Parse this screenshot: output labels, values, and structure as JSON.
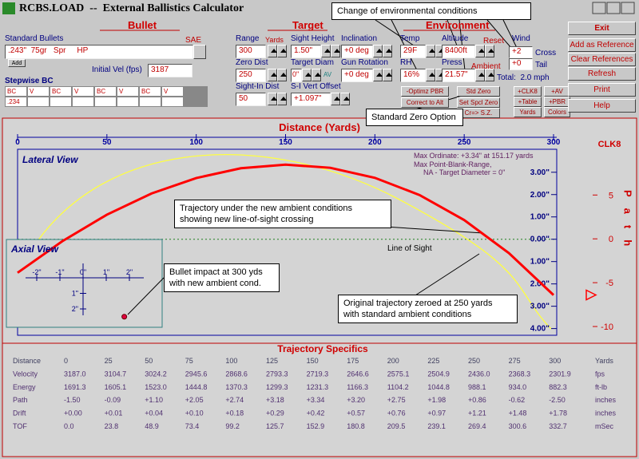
{
  "title_bar": {
    "title": "RCBS.LOAD  --  External Ballistics Calculator"
  },
  "bullet": {
    "heading": "Bullet",
    "standard_bullets_label": "Standard Bullets",
    "sae": "SAE",
    "bullet_value": ".243\"  75gr   Spr     HP",
    "add": "Add",
    "initial_vel_label": "Initial Vel (fps)",
    "initial_vel": "3187",
    "stepwise_bc_label": "Stepwise BC",
    "bc_headers": [
      "BC",
      "V",
      "BC",
      "V",
      "BC",
      "V",
      "BC",
      "V"
    ],
    "bc_first": ".234"
  },
  "target": {
    "heading": "Target",
    "range_label": "Range",
    "range_unit": "Yards",
    "range": "300",
    "sight_height_label": "Sight Height",
    "sight_height": "1.50\"",
    "inclination_label": "Inclination",
    "inclination": "+0 deg",
    "zero_dist_label": "Zero Dist",
    "zero_dist": "250",
    "target_diam_label": "Target Diam",
    "target_diam": "0\"",
    "av": "AV",
    "gun_rotation_label": "Gun Rotation",
    "gun_rotation": "+0 deg",
    "sight_in_label": "Sight-In Dist",
    "sight_in": "50",
    "svo_label": "S-I Vert Offset",
    "svo": "+1.097\""
  },
  "environment": {
    "heading": "Environment",
    "temp_label": "Temp",
    "temp": "29F",
    "altitude_label": "Altitude",
    "altitude": "8400ft",
    "reset": "Reset",
    "wind_label": "Wind",
    "rh_label": "RH",
    "rh": "16%",
    "press_label": "Press",
    "press": "21.57\"",
    "ambient": "Ambient",
    "cross_value": "+2",
    "cross": "Cross",
    "tail_value": "+0",
    "tail": "Tail",
    "total": "Total:  2.0 mph"
  },
  "buttons": [
    "-Optimz PBR",
    "Correct to Alt",
    "Std Zero",
    "Set Spcl Zero",
    "Cr=> S.Z.",
    "+CLK8",
    "+AV",
    "+Table",
    "+PBR",
    "Yards",
    "Colors"
  ],
  "side_buttons": [
    "Exit",
    "Add as Reference",
    "Clear References",
    "Refresh",
    "Print",
    "Help"
  ],
  "callouts": {
    "environment": [
      "Change of environmental conditions"
    ],
    "std_zero": [
      "Standard Zero Option"
    ],
    "new_trajectory": [
      "Trajectory under the new ambient conditions",
      "showing new line-of-sight crossing"
    ],
    "impact": [
      "Bullet impact at 300 yds",
      "with new ambient cond."
    ],
    "original": [
      "Original trajectory zeroed at 250 yards",
      "with standard ambient conditions"
    ]
  },
  "chart_data": {
    "type": "line",
    "x_label": "Distance  (Yards)",
    "xlim": [
      0,
      300
    ],
    "xticks": [
      0,
      50,
      100,
      150,
      200,
      250,
      300
    ],
    "ylim": [
      -4.3,
      4.1
    ],
    "yticks": [
      {
        "value": 3,
        "label": "3.00\""
      },
      {
        "value": 2,
        "label": "2.00\""
      },
      {
        "value": 1,
        "label": "1.00\""
      },
      {
        "value": 0,
        "label": "0.00\""
      },
      {
        "value": -1,
        "label": "1.00\""
      },
      {
        "value": -2,
        "label": "2.00\""
      },
      {
        "value": -3,
        "label": "3.00\""
      },
      {
        "value": -4,
        "label": "4.00\""
      }
    ],
    "y2_unit": "CLK8",
    "y2_label": "Path",
    "y2lim": [
      -11,
      10.4
    ],
    "y2ticks": [
      5,
      0,
      -5,
      -10
    ],
    "y2_marker": -6.4,
    "lateral_view": "Lateral View",
    "max_ordinate": "Max Ordinate: +3.34\" at 151.17 yards",
    "pbr": [
      "Max Point-Blank-Range,",
      "NA - Target Diameter = 0\""
    ],
    "line_of_sight": "Line of Sight",
    "trajectory_color": "#ff0000",
    "original_color": "#ffff40",
    "axial": {
      "label": "Axial View",
      "xticks": [
        {
          "value": -2,
          "label": "-2\""
        },
        {
          "value": -1,
          "label": "-1\""
        },
        {
          "value": 0,
          "label": "0\""
        },
        {
          "value": 1,
          "label": "1\""
        },
        {
          "value": 2,
          "label": "2\""
        }
      ],
      "yticks": [
        {
          "value": 1,
          "label": "1\""
        },
        {
          "value": 2,
          "label": "2\""
        }
      ]
    }
  },
  "table": {
    "heading": "Trajectory Specifics",
    "rows": [
      [
        "Distance",
        "0",
        "25",
        "50",
        "75",
        "100",
        "125",
        "150",
        "175",
        "200",
        "225",
        "250",
        "275",
        "300",
        "Yards"
      ],
      [
        "Velocity",
        "3187.0",
        "3104.7",
        "3024.2",
        "2945.6",
        "2868.6",
        "2793.3",
        "2719.3",
        "2646.6",
        "2575.1",
        "2504.9",
        "2436.0",
        "2368.3",
        "2301.9",
        "fps"
      ],
      [
        "Energy",
        "1691.3",
        "1605.1",
        "1523.0",
        "1444.8",
        "1370.3",
        "1299.3",
        "1231.3",
        "1166.3",
        "1104.2",
        "1044.8",
        "988.1",
        "934.0",
        "882.3",
        "ft-lb"
      ],
      [
        "Path",
        "-1.50",
        "-0.09",
        "+1.10",
        "+2.05",
        "+2.74",
        "+3.18",
        "+3.34",
        "+3.20",
        "+2.75",
        "+1.98",
        "+0.86",
        "-0.62",
        "-2.50",
        "inches"
      ],
      [
        "Drift",
        "+0.00",
        "+0.01",
        "+0.04",
        "+0.10",
        "+0.18",
        "+0.29",
        "+0.42",
        "+0.57",
        "+0.76",
        "+0.97",
        "+1.21",
        "+1.48",
        "+1.78",
        "inches"
      ],
      [
        "TOF",
        "0.0",
        "23.8",
        "48.9",
        "73.4",
        "99.2",
        "125.7",
        "152.9",
        "180.8",
        "209.5",
        "239.1",
        "269.4",
        "300.6",
        "332.7",
        "mSec"
      ]
    ]
  }
}
